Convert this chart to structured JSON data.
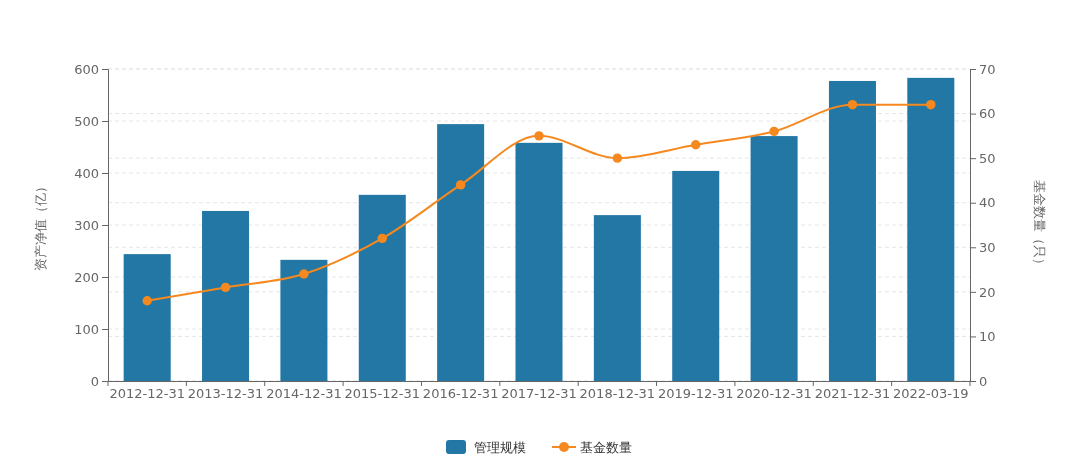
{
  "chart_data": {
    "type": "bar",
    "categories": [
      "2012-12-31",
      "2013-12-31",
      "2014-12-31",
      "2015-12-31",
      "2016-12-31",
      "2017-12-31",
      "2018-12-31",
      "2019-12-31",
      "2020-12-31",
      "2021-12-31",
      "2022-03-19"
    ],
    "series": [
      {
        "name": "管理规模",
        "color": "#2377a4",
        "values": [
          244,
          327,
          233,
          358,
          494,
          458,
          319,
          404,
          471,
          577,
          583
        ]
      },
      {
        "name": "基金数量",
        "type": "line",
        "axis": "y2",
        "color": "#f5891f",
        "marker": "circle",
        "values": [
          18,
          21,
          24,
          32,
          44,
          55,
          50,
          53,
          56,
          62,
          62
        ]
      }
    ],
    "ylabel": "资产净值（亿）",
    "y2label": "基金数量（只）",
    "ylim": [
      0,
      600
    ],
    "yticks": [
      0,
      100,
      200,
      300,
      400,
      500,
      600
    ],
    "y2lim": [
      0,
      70
    ],
    "y2ticks": [
      0,
      10,
      20,
      30,
      40,
      50,
      60,
      70
    ],
    "grid": true,
    "legend": "bottom"
  }
}
